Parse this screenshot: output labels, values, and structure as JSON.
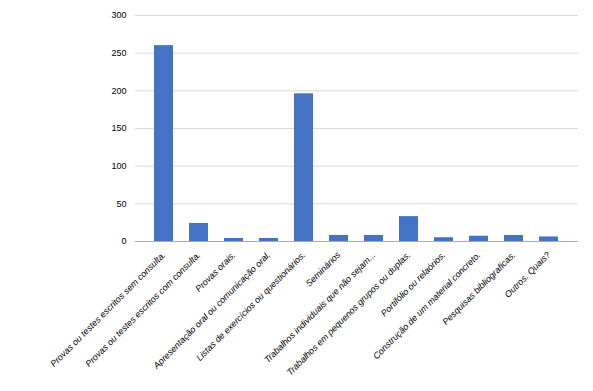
{
  "chart_data": {
    "type": "bar",
    "categories": [
      "Provas ou testes escritos sem consulta.",
      "Provas ou testes escritos com consulta.",
      "Provas orais.",
      "Apresentação oral ou comunicação oral.",
      "Listas de exercícios ou questionários.",
      "Seminários",
      "Trabalhos individuais que não sejam...",
      "Trabalhos em pequenos grupos ou duplas.",
      "Portifólio ou relaórios.",
      "Construção de um material concreto.",
      "Pesquisas bibliograficas.",
      "Outros. Quais?"
    ],
    "values": [
      260,
      24,
      4,
      4,
      196,
      8,
      8,
      33,
      5,
      7,
      8,
      6
    ],
    "color": "#4472C4",
    "ylim": [
      0,
      300
    ],
    "yticks": [
      0,
      50,
      100,
      150,
      200,
      250,
      300
    ],
    "grid": true
  }
}
